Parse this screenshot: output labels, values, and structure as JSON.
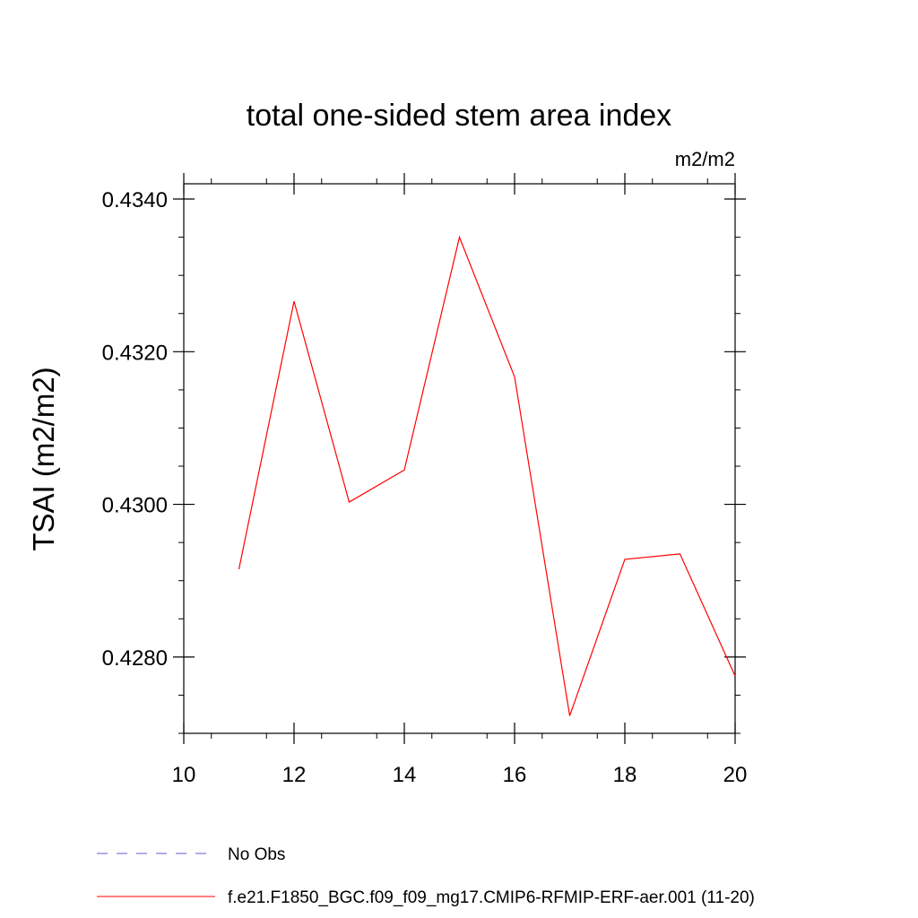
{
  "chart_data": {
    "type": "line",
    "title": "total one-sided stem area index",
    "units_label": "m2/m2",
    "ylabel": "TSAI  (m2/m2)",
    "xlabel": "",
    "xlim": [
      10,
      20
    ],
    "ylim": [
      0.427,
      0.4342
    ],
    "x_ticks": [
      10,
      12,
      14,
      16,
      18,
      20
    ],
    "x_tick_labels": [
      "10",
      "12",
      "14",
      "16",
      "18",
      "20"
    ],
    "y_ticks": [
      0.428,
      0.43,
      0.432,
      0.434
    ],
    "y_tick_labels": [
      "0.4280",
      "0.4300",
      "0.4320",
      "0.4340"
    ],
    "grid": false,
    "legend_position": "bottom",
    "series": [
      {
        "name": "f.e21.F1850_BGC.f09_f09_mg17.CMIP6-RFMIP-ERF-aer.001 (11-20)",
        "color": "#ff0000",
        "style": "solid",
        "x": [
          11,
          12,
          13,
          14,
          15,
          16,
          17,
          18,
          19,
          20
        ],
        "y": [
          0.42915,
          0.43266,
          0.43003,
          0.43045,
          0.4335,
          0.43167,
          0.42723,
          0.42928,
          0.42935,
          0.42775
        ]
      }
    ],
    "legend": [
      {
        "label": "No Obs",
        "color": "#6a5acd",
        "style": "dashed"
      },
      {
        "label": "f.e21.F1850_BGC.f09_f09_mg17.CMIP6-RFMIP-ERF-aer.001 (11-20)",
        "color": "#ff0000",
        "style": "solid"
      }
    ]
  }
}
